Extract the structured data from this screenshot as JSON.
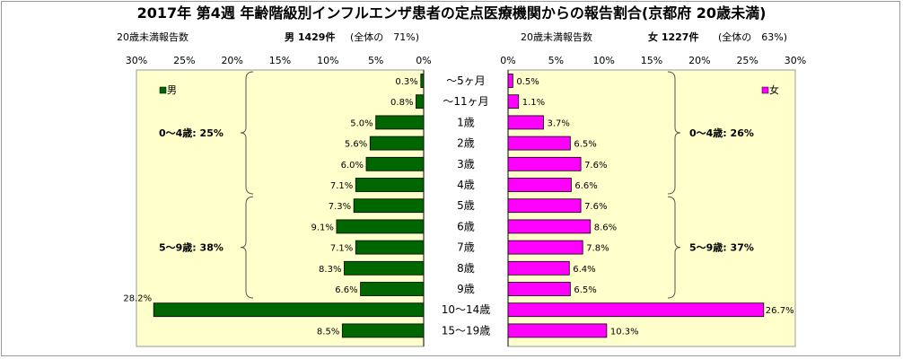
{
  "title": "2017年 第4週 年齢階級別インフルエンザ患者の定点医療機関からの報告割合(京都府 20歳未満)",
  "left_header": {
    "count_label": "20歳未満報告数",
    "series_label": "男 1429件",
    "share_label": "(全体の　71%)"
  },
  "right_header": {
    "count_label": "20歳未満報告数",
    "series_label": "女 1227件",
    "share_label": "(全体の　63%)"
  },
  "colors": {
    "male": "#006600",
    "female": "#ff00ff",
    "plot_bg": "#ffffcc"
  },
  "chart_data": {
    "type": "bar",
    "orientation": "horizontal-pyramid",
    "categories": [
      "〜5ヶ月",
      "〜11ヶ月",
      "1歳",
      "2歳",
      "3歳",
      "4歳",
      "5歳",
      "6歳",
      "7歳",
      "8歳",
      "9歳",
      "10〜14歳",
      "15〜19歳"
    ],
    "series": [
      {
        "name": "男",
        "values": [
          0.3,
          0.8,
          5.0,
          5.6,
          6.0,
          7.1,
          7.3,
          9.1,
          7.1,
          8.3,
          6.6,
          28.2,
          8.5
        ],
        "labels": [
          "0.3%",
          "0.8%",
          "5.0%",
          "5.6%",
          "6.0%",
          "7.1%",
          "7.3%",
          "9.1%",
          "7.1%",
          "8.3%",
          "6.6%",
          "28.2%",
          "8.5%"
        ]
      },
      {
        "name": "女",
        "values": [
          0.5,
          1.1,
          3.7,
          6.5,
          7.6,
          6.6,
          7.6,
          8.6,
          7.8,
          6.4,
          6.5,
          26.7,
          10.3
        ],
        "labels": [
          "0.5%",
          "1.1%",
          "3.7%",
          "6.5%",
          "7.6%",
          "6.6%",
          "7.6%",
          "8.6%",
          "7.8%",
          "6.4%",
          "6.5%",
          "26.7%",
          "10.3%"
        ]
      }
    ],
    "x_ticks_left": [
      "30%",
      "25%",
      "20%",
      "15%",
      "10%",
      "5%",
      "0%"
    ],
    "x_ticks_right": [
      "0%",
      "5%",
      "10%",
      "15%",
      "20%",
      "25%",
      "30%"
    ],
    "xlim": [
      0,
      30
    ],
    "legend": {
      "male": "男",
      "female": "女"
    },
    "groups": {
      "male": [
        {
          "label": "0〜4歳: 25%",
          "from": 0,
          "to": 5
        },
        {
          "label": "5〜9歳: 38%",
          "from": 6,
          "to": 10
        }
      ],
      "female": [
        {
          "label": "0〜4歳: 26%",
          "from": 0,
          "to": 5
        },
        {
          "label": "5〜9歳: 37%",
          "from": 6,
          "to": 10
        }
      ]
    }
  }
}
